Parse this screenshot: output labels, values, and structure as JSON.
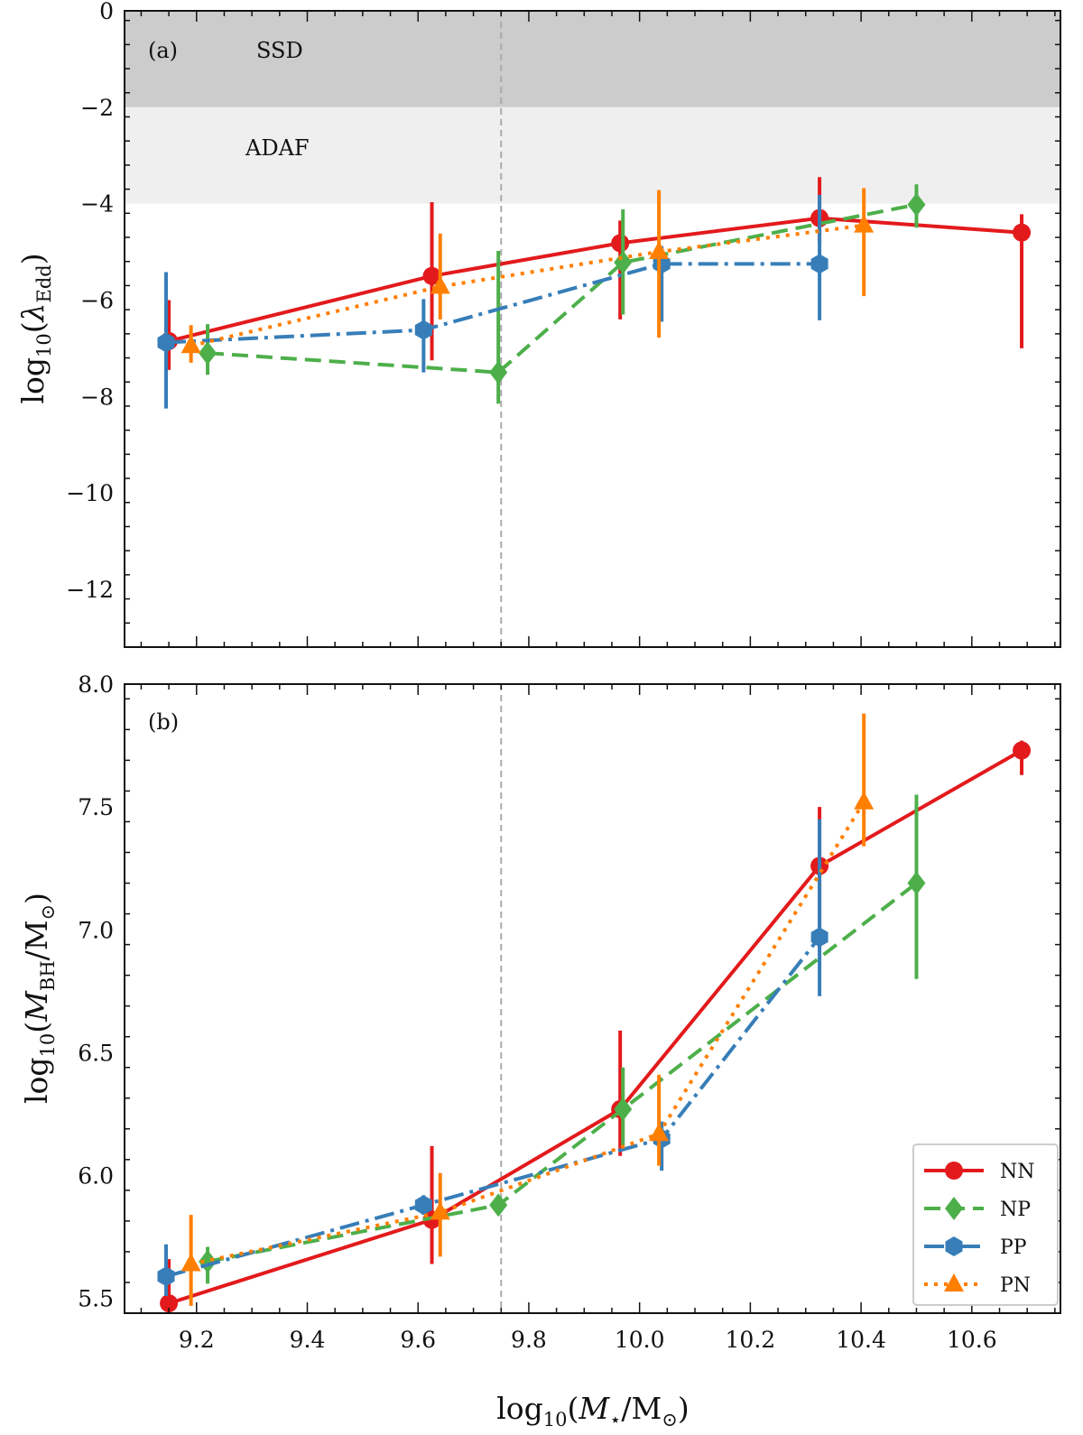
{
  "chart_data": [
    {
      "type": "line",
      "panel_label": "(a)",
      "ylabel": "log10(λEdd)",
      "ylabel_sub": "10",
      "ylabel_symbol": "λ",
      "ylabel_symbol_sub": "Edd",
      "xlim": [
        9.07,
        10.76
      ],
      "ylim": [
        -13.2,
        0
      ],
      "yticks": [
        0,
        -2,
        -4,
        -6,
        -8,
        -10,
        -12
      ],
      "ytick_labels": [
        "0",
        "−2",
        "−4",
        "−6",
        "−8",
        "−10",
        "−12"
      ],
      "regions": [
        {
          "label": "SSD",
          "y_from": -2,
          "y_to": 0,
          "color": "#cccccc"
        },
        {
          "label": "ADAF",
          "y_from": -4,
          "y_to": -2,
          "color": "#efefef"
        }
      ],
      "vline": 9.75,
      "series": [
        {
          "name": "NN",
          "color": "#e31a1c",
          "x": [
            9.15,
            9.625,
            9.965,
            10.325,
            10.69
          ],
          "y": [
            -6.85,
            -5.5,
            -4.82,
            -4.3,
            -4.6
          ],
          "ylo": [
            -7.45,
            -7.25,
            -6.4,
            -4.85,
            -7.0
          ],
          "yhi": [
            -6.0,
            -3.97,
            -4.35,
            -3.45,
            -4.22
          ]
        },
        {
          "name": "NP",
          "color": "#4daf4a",
          "x": [
            9.22,
            9.745,
            9.97,
            10.5
          ],
          "y": [
            -7.1,
            -7.5,
            -5.22,
            -4.02
          ],
          "ylo": [
            -7.55,
            -8.15,
            -6.3,
            -4.5
          ],
          "yhi": [
            -6.5,
            -4.98,
            -4.12,
            -3.6
          ]
        },
        {
          "name": "PP",
          "color": "#377eb8",
          "x": [
            9.145,
            9.61,
            10.04,
            10.325
          ],
          "y": [
            -6.88,
            -6.62,
            -5.25,
            -5.25
          ],
          "ylo": [
            -8.25,
            -7.5,
            -6.45,
            -6.42
          ],
          "yhi": [
            -5.42,
            -5.98,
            -4.88,
            -3.82
          ]
        },
        {
          "name": "PN",
          "color": "#ff7f00",
          "x": [
            9.19,
            9.64,
            10.035,
            10.405
          ],
          "y": [
            -6.95,
            -5.72,
            -5.0,
            -4.45
          ],
          "ylo": [
            -7.3,
            -6.4,
            -6.78,
            -5.92
          ],
          "yhi": [
            -6.52,
            -4.62,
            -3.72,
            -3.68
          ]
        }
      ]
    },
    {
      "type": "line",
      "panel_label": "(b)",
      "xlabel": "log10(M⋆/M⊙)",
      "xlabel_sub": "10",
      "xlabel_symbol": "M⋆",
      "xlabel_unit": "M⊙",
      "ylabel": "log10(MBH/M⊙)",
      "ylabel_sub": "10",
      "ylabel_symbol": "M",
      "ylabel_symbol_sub": "BH",
      "ylabel_unit": "M⊙",
      "xlim": [
        9.07,
        10.76
      ],
      "ylim": [
        5.44,
        8.0
      ],
      "xticks": [
        9.2,
        9.4,
        9.6,
        9.8,
        10.0,
        10.2,
        10.4,
        10.6
      ],
      "xtick_labels": [
        "9.2",
        "9.4",
        "9.6",
        "9.8",
        "10.0",
        "10.2",
        "10.4",
        "10.6"
      ],
      "yticks": [
        5.5,
        6.0,
        6.5,
        7.0,
        7.5,
        8.0
      ],
      "ytick_labels": [
        "5.5",
        "6.0",
        "6.5",
        "7.0",
        "7.5",
        "8.0"
      ],
      "vline": 9.75,
      "legend": "lower right",
      "series": [
        {
          "name": "NN",
          "color": "#e31a1c",
          "x": [
            9.15,
            9.625,
            9.965,
            10.325,
            10.69
          ],
          "y": [
            5.48,
            5.82,
            6.27,
            7.26,
            7.73
          ],
          "ylo": [
            5.45,
            5.64,
            6.08,
            6.92,
            7.63
          ],
          "yhi": [
            5.66,
            6.12,
            6.59,
            7.5,
            7.77
          ]
        },
        {
          "name": "NP",
          "color": "#4daf4a",
          "x": [
            9.22,
            9.745,
            9.97,
            10.5
          ],
          "y": [
            5.65,
            5.88,
            6.27,
            7.19
          ],
          "ylo": [
            5.56,
            5.86,
            6.1,
            6.8
          ],
          "yhi": [
            5.71,
            5.9,
            6.44,
            7.55
          ]
        },
        {
          "name": "PP",
          "color": "#377eb8",
          "x": [
            9.145,
            9.61,
            10.04,
            10.325
          ],
          "y": [
            5.59,
            5.88,
            6.15,
            6.97
          ],
          "ylo": [
            5.51,
            5.84,
            6.02,
            6.73
          ],
          "yhi": [
            5.72,
            5.92,
            6.22,
            7.45
          ]
        },
        {
          "name": "PN",
          "color": "#ff7f00",
          "x": [
            9.19,
            9.64,
            10.035,
            10.405
          ],
          "y": [
            5.64,
            5.85,
            6.17,
            7.52
          ],
          "ylo": [
            5.47,
            5.67,
            6.04,
            7.34
          ],
          "yhi": [
            5.84,
            6.01,
            6.41,
            7.88
          ]
        }
      ]
    }
  ],
  "legend_entries": [
    "NN",
    "NP",
    "PP",
    "PN"
  ]
}
